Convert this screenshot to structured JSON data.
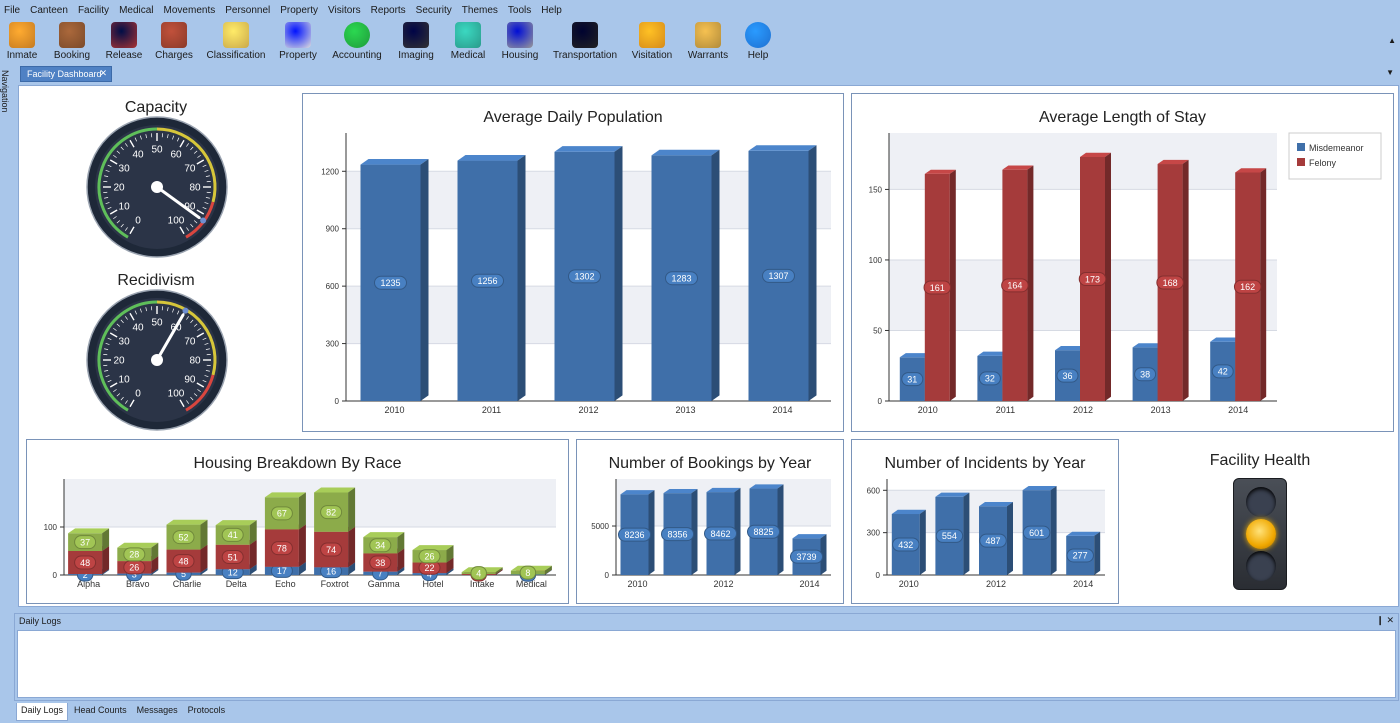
{
  "menu": [
    "File",
    "Canteen",
    "Facility",
    "Medical",
    "Movements",
    "Personnel",
    "Property",
    "Visitors",
    "Reports",
    "Security",
    "Themes",
    "Tools",
    "Help"
  ],
  "toolbar": [
    {
      "label": "Inmate",
      "icon": "inmate-icon"
    },
    {
      "label": "Booking",
      "icon": "booking-icon"
    },
    {
      "label": "Release",
      "icon": "release-icon"
    },
    {
      "label": "Charges",
      "icon": "charges-icon"
    },
    {
      "label": "Classification",
      "icon": "classification-icon"
    },
    {
      "label": "Property",
      "icon": "property-icon"
    },
    {
      "label": "Accounting",
      "icon": "accounting-icon"
    },
    {
      "label": "Imaging",
      "icon": "imaging-icon"
    },
    {
      "label": "Medical",
      "icon": "medical-icon"
    },
    {
      "label": "Housing",
      "icon": "housing-icon"
    },
    {
      "label": "Transportation",
      "icon": "transportation-icon"
    },
    {
      "label": "Visitation",
      "icon": "visitation-icon"
    },
    {
      "label": "Warrants",
      "icon": "warrants-icon"
    },
    {
      "label": "Help",
      "icon": "help-icon"
    }
  ],
  "navigation_label": "Navigation",
  "document_tab": "Facility Dashboard",
  "gauges": {
    "capacity": {
      "title": "Capacity",
      "ticks": [
        "0",
        "10",
        "20",
        "30",
        "40",
        "50",
        "60",
        "70",
        "80",
        "90",
        "100"
      ],
      "value": 92
    },
    "recidivism": {
      "title": "Recidivism",
      "ticks": [
        "0",
        "10",
        "20",
        "30",
        "40",
        "50",
        "60",
        "70",
        "80",
        "90",
        "100"
      ],
      "value": 60
    }
  },
  "charts": {
    "adp": {
      "type": "bar",
      "title": "Average Daily Population",
      "categories": [
        "2010",
        "2011",
        "2012",
        "2013",
        "2014"
      ],
      "values": [
        1235,
        1256,
        1302,
        1283,
        1307
      ],
      "labels": [
        "1235",
        "1256",
        "1302",
        "1283",
        "1307"
      ],
      "yticks": [
        "0",
        "300",
        "600",
        "900",
        "1200"
      ],
      "ylim": [
        0,
        1400
      ]
    },
    "alos": {
      "type": "bar",
      "title": "Average Length of Stay",
      "categories": [
        "2010",
        "2011",
        "2012",
        "2013",
        "2014"
      ],
      "series": [
        {
          "name": "Misdemeanor",
          "values": [
            31,
            32,
            36,
            38,
            42
          ],
          "labels": [
            "31",
            "32",
            "36",
            "38",
            "42"
          ]
        },
        {
          "name": "Felony",
          "values": [
            161,
            164,
            173,
            168,
            162
          ],
          "labels": [
            "161",
            "164",
            "173",
            "168",
            "162"
          ]
        }
      ],
      "yticks": [
        "0",
        "50",
        "100",
        "150"
      ],
      "ylim": [
        0,
        190
      ],
      "legend": "top-right"
    },
    "housing": {
      "type": "bar",
      "title": "Housing Breakdown By Race",
      "categories": [
        "Alpha",
        "Bravo",
        "Charlie",
        "Delta",
        "Echo",
        "Foxtrot",
        "Gamma",
        "Hotel",
        "Intake",
        "Medical"
      ],
      "series": [
        {
          "name": "blue",
          "values": [
            2,
            3,
            5,
            12,
            17,
            16,
            7,
            4,
            0,
            1
          ],
          "labels": [
            "2",
            "3",
            "5",
            "12",
            "17",
            "16",
            "7",
            "4",
            "",
            "1"
          ]
        },
        {
          "name": "red",
          "values": [
            48,
            26,
            48,
            51,
            78,
            74,
            38,
            22,
            2,
            0
          ],
          "labels": [
            "48",
            "26",
            "48",
            "51",
            "78",
            "74",
            "38",
            "22",
            "2",
            ""
          ]
        },
        {
          "name": "green",
          "values": [
            37,
            28,
            52,
            41,
            67,
            82,
            34,
            26,
            4,
            8
          ],
          "labels": [
            "37",
            "28",
            "52",
            "41",
            "67",
            "82",
            "34",
            "26",
            "4",
            "8"
          ]
        }
      ],
      "yticks": [
        "0",
        "100"
      ],
      "ylim": [
        0,
        200
      ]
    },
    "bookings": {
      "type": "bar",
      "title": "Number of Bookings by Year",
      "categories": [
        "2010",
        "2011",
        "2012",
        "2013",
        "2014"
      ],
      "xticks": [
        "2010",
        "",
        "2012",
        "",
        "2014"
      ],
      "values": [
        8236,
        8356,
        8462,
        8825,
        3739
      ],
      "labels": [
        "8236",
        "8356",
        "8462",
        "8825",
        "3739"
      ],
      "yticks": [
        "0",
        "5000"
      ],
      "ylim": [
        0,
        9800
      ]
    },
    "incidents": {
      "type": "bar",
      "title": "Number of Incidents by Year",
      "categories": [
        "2010",
        "2011",
        "2012",
        "2013",
        "2014"
      ],
      "xticks": [
        "2010",
        "",
        "2012",
        "",
        "2014"
      ],
      "values": [
        432,
        554,
        487,
        601,
        277
      ],
      "labels": [
        "432",
        "554",
        "487",
        "601",
        "277"
      ],
      "yticks": [
        "0",
        "300",
        "600"
      ],
      "ylim": [
        0,
        680
      ]
    }
  },
  "facility_health": {
    "title": "Facility Health",
    "status": "yellow"
  },
  "colors": {
    "blue": "#3f6fa9",
    "red": "#a53b3b",
    "green": "#8cab4a"
  },
  "logs": {
    "title": "Daily Logs",
    "pin": "❙",
    "close": "✕"
  },
  "bottom_tabs": [
    "Daily Logs",
    "Head Counts",
    "Messages",
    "Protocols"
  ]
}
